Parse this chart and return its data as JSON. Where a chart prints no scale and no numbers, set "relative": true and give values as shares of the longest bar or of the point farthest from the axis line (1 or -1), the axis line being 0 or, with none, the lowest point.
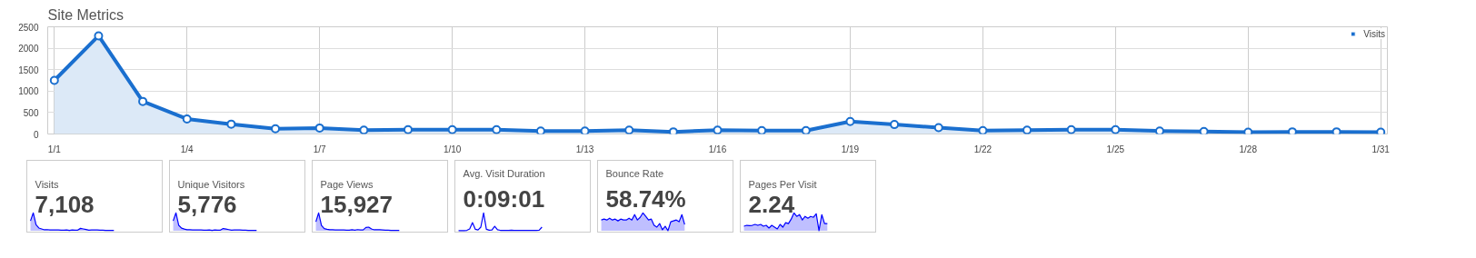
{
  "chart_data": [
    {
      "type": "area",
      "title": "Site Metrics",
      "marker": "circle",
      "grid": true,
      "legend": "top right",
      "categories": [
        "1/1",
        null,
        null,
        "1/4",
        null,
        null,
        "1/7",
        null,
        null,
        "1/10",
        null,
        null,
        "1/13",
        null,
        null,
        "1/16",
        null,
        null,
        "1/19",
        null,
        null,
        "1/22",
        null,
        null,
        "1/25",
        null,
        null,
        "1/28",
        null,
        null,
        "1/31"
      ],
      "ylim": [
        0,
        2500
      ],
      "yticks": [
        0,
        500,
        1000,
        1500,
        2000,
        2500
      ],
      "series": [
        {
          "name": "Visits",
          "color": "#1a6fcf",
          "values": [
            1250,
            2290,
            760,
            350,
            230,
            120,
            140,
            90,
            100,
            100,
            100,
            70,
            70,
            90,
            50,
            90,
            80,
            80,
            290,
            220,
            150,
            80,
            90,
            100,
            100,
            70,
            60,
            40,
            50,
            50,
            40
          ]
        }
      ]
    },
    {
      "type": "area",
      "title": "Visits",
      "subtitle": "7,108",
      "relative": true,
      "categories": [
        null,
        null,
        null,
        null,
        null,
        null,
        null,
        null,
        null,
        null,
        null,
        null,
        null,
        null,
        null,
        null,
        null,
        null,
        null,
        null,
        null,
        null,
        null,
        null,
        null,
        null,
        null,
        null,
        null,
        null,
        null
      ],
      "series": [
        {
          "color": "#0000ff",
          "values": [
            0.55,
            1,
            0.33,
            0.15,
            0.1,
            0.05,
            0.06,
            0.04,
            0.04,
            0.04,
            0.04,
            0.03,
            0.03,
            0.04,
            0.02,
            0.04,
            0.03,
            0.03,
            0.13,
            0.1,
            0.07,
            0.03,
            0.04,
            0.04,
            0.04,
            0.03,
            0.03,
            0.02,
            0.02,
            0.02,
            0.02
          ]
        }
      ]
    },
    {
      "type": "area",
      "title": "Unique Visitors",
      "subtitle": "5,776",
      "relative": true,
      "categories": [
        null,
        null,
        null,
        null,
        null,
        null,
        null,
        null,
        null,
        null,
        null,
        null,
        null,
        null,
        null,
        null,
        null,
        null,
        null,
        null,
        null,
        null,
        null,
        null,
        null,
        null,
        null,
        null,
        null,
        null,
        null
      ],
      "series": [
        {
          "color": "#0000ff",
          "values": [
            0.55,
            1,
            0.3,
            0.14,
            0.09,
            0.05,
            0.05,
            0.04,
            0.04,
            0.04,
            0.04,
            0.03,
            0.03,
            0.04,
            0.02,
            0.04,
            0.03,
            0.03,
            0.12,
            0.09,
            0.06,
            0.03,
            0.04,
            0.04,
            0.04,
            0.03,
            0.03,
            0.02,
            0.02,
            0.02,
            0.02
          ]
        }
      ]
    },
    {
      "type": "area",
      "title": "Page Views",
      "subtitle": "15,927",
      "relative": true,
      "categories": [
        null,
        null,
        null,
        null,
        null,
        null,
        null,
        null,
        null,
        null,
        null,
        null,
        null,
        null,
        null,
        null,
        null,
        null,
        null,
        null,
        null,
        null,
        null,
        null,
        null,
        null,
        null,
        null,
        null,
        null,
        null
      ],
      "series": [
        {
          "color": "#0000ff",
          "values": [
            0.5,
            1,
            0.3,
            0.12,
            0.08,
            0.05,
            0.05,
            0.04,
            0.04,
            0.04,
            0.04,
            0.03,
            0.03,
            0.05,
            0.03,
            0.06,
            0.04,
            0.04,
            0.18,
            0.2,
            0.1,
            0.05,
            0.05,
            0.05,
            0.04,
            0.03,
            0.03,
            0.02,
            0.02,
            0.02,
            0.02
          ]
        }
      ]
    },
    {
      "type": "line",
      "title": "Avg. Visit Duration",
      "subtitle": "0:09:01",
      "relative": true,
      "categories": [
        null,
        null,
        null,
        null,
        null,
        null,
        null,
        null,
        null,
        null,
        null,
        null,
        null,
        null,
        null,
        null,
        null,
        null,
        null,
        null,
        null,
        null,
        null,
        null,
        null,
        null,
        null,
        null,
        null,
        null,
        null
      ],
      "series": [
        {
          "color": "#0000ff",
          "values": [
            0,
            0,
            0,
            0.02,
            0.1,
            0.45,
            0.08,
            0.04,
            0.2,
            1,
            0.08,
            0.03,
            0.04,
            0.25,
            0.05,
            0.02,
            0.02,
            0.02,
            0.02,
            0.03,
            0.02,
            0.02,
            0.02,
            0.02,
            0.02,
            0.02,
            0.02,
            0.02,
            0.02,
            0.03,
            0.2
          ]
        }
      ]
    },
    {
      "type": "area",
      "title": "Bounce Rate",
      "subtitle": "58.74%",
      "relative": true,
      "categories": [
        null,
        null,
        null,
        null,
        null,
        null,
        null,
        null,
        null,
        null,
        null,
        null,
        null,
        null,
        null,
        null,
        null,
        null,
        null,
        null,
        null,
        null,
        null,
        null,
        null,
        null,
        null,
        null,
        null,
        null,
        null
      ],
      "series": [
        {
          "color": "#0000ff",
          "values": [
            0.6,
            0.65,
            0.6,
            0.7,
            0.6,
            0.65,
            0.55,
            0.65,
            0.6,
            0.6,
            0.7,
            0.6,
            0.9,
            0.6,
            0.75,
            1,
            0.8,
            0.6,
            0.65,
            0.3,
            0.2,
            0.4,
            0.05,
            0.25,
            0,
            0.5,
            0.55,
            0.6,
            0.5,
            0.9,
            0.35
          ]
        }
      ]
    },
    {
      "type": "area",
      "title": "Pages Per Visit",
      "subtitle": "2.24",
      "relative": true,
      "categories": [
        null,
        null,
        null,
        null,
        null,
        null,
        null,
        null,
        null,
        null,
        null,
        null,
        null,
        null,
        null,
        null,
        null,
        null,
        null,
        null,
        null,
        null,
        null,
        null,
        null,
        null,
        null,
        null,
        null,
        null,
        null
      ],
      "series": [
        {
          "color": "#0000ff",
          "values": [
            0.25,
            0.3,
            0.28,
            0.3,
            0.35,
            0.3,
            0.35,
            0.25,
            0.3,
            0.15,
            0.3,
            0.2,
            0.1,
            0.35,
            0.2,
            0.45,
            0.4,
            0.65,
            1,
            0.8,
            0.9,
            0.6,
            0.8,
            0.7,
            0.8,
            0.75,
            0.95,
            0,
            0.9,
            0.4,
            0.4
          ]
        }
      ]
    }
  ]
}
